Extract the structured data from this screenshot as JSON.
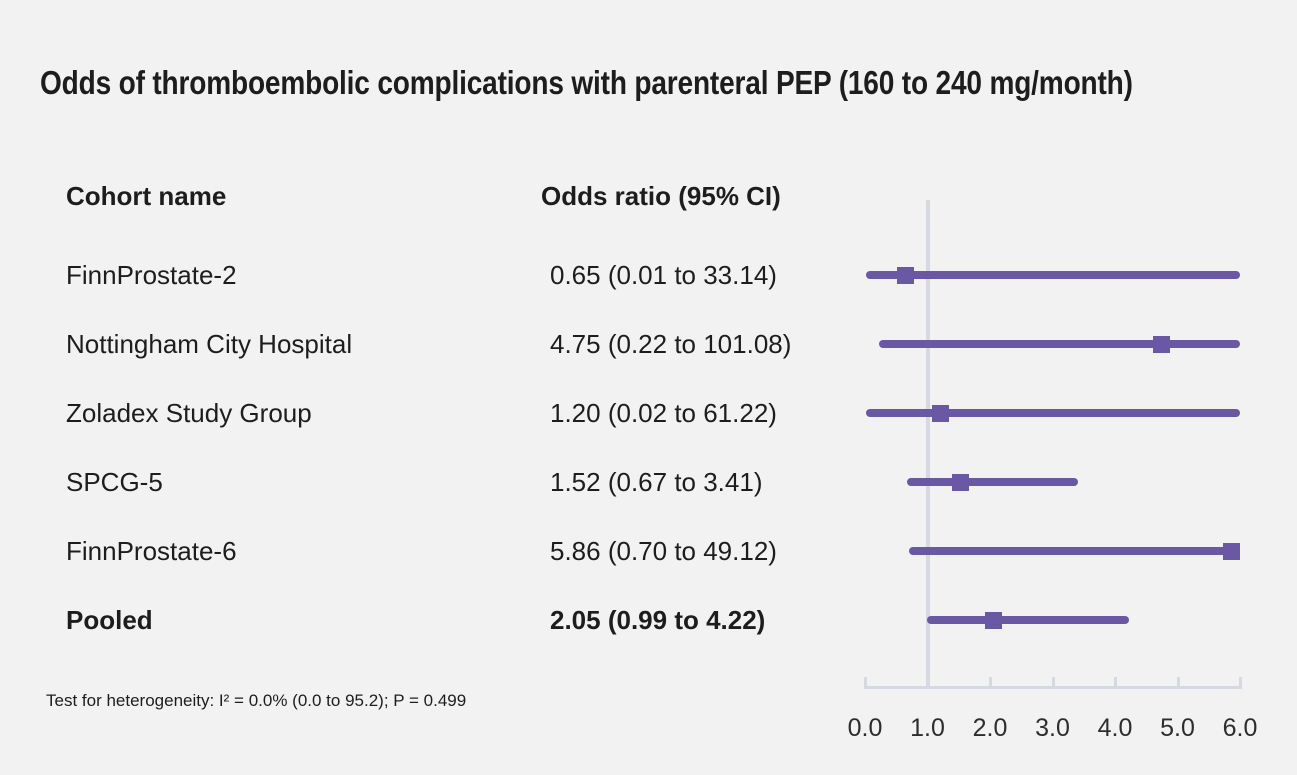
{
  "title": "Odds of thromboembolic complications with parenteral PEP (160 to 240 mg/month)",
  "columns": {
    "cohort": "Cohort name",
    "odds_ratio": "Odds ratio (95% CI)"
  },
  "footnote": "Test for heterogeneity: I² = 0.0% (0.0 to 95.2); P = 0.499",
  "chart_data": {
    "type": "forest",
    "title": "Odds of thromboembolic complications with parenteral PEP (160 to 240 mg/month)",
    "xlabel": "",
    "xlim": [
      0,
      6
    ],
    "x_ticks": [
      0,
      1,
      2,
      3,
      4,
      5,
      6
    ],
    "x_tick_labels": [
      "0.0",
      "1.0",
      "2.0",
      "3.0",
      "4.0",
      "5.0",
      "6.0"
    ],
    "reference_line": 1.0,
    "rows": [
      {
        "label": "FinnProstate-2",
        "or_text": "0.65 (0.01 to 33.14)",
        "or": 0.65,
        "ci_low": 0.01,
        "ci_high": 33.14,
        "pooled": false
      },
      {
        "label": "Nottingham City Hospital",
        "or_text": "4.75 (0.22 to 101.08)",
        "or": 4.75,
        "ci_low": 0.22,
        "ci_high": 101.08,
        "pooled": false
      },
      {
        "label": "Zoladex Study Group",
        "or_text": "1.20 (0.02 to 61.22)",
        "or": 1.2,
        "ci_low": 0.02,
        "ci_high": 61.22,
        "pooled": false
      },
      {
        "label": "SPCG-5",
        "or_text": "1.52 (0.67 to 3.41)",
        "or": 1.52,
        "ci_low": 0.67,
        "ci_high": 3.41,
        "pooled": false
      },
      {
        "label": "FinnProstate-6",
        "or_text": "5.86 (0.70 to 49.12)",
        "or": 5.86,
        "ci_low": 0.7,
        "ci_high": 49.12,
        "pooled": false
      },
      {
        "label": "Pooled",
        "or_text": "2.05 (0.99 to 4.22)",
        "or": 2.05,
        "ci_low": 0.99,
        "ci_high": 4.22,
        "pooled": true
      }
    ],
    "colors": {
      "marker": "#6a58a5",
      "ci_line": "#6a58a5",
      "axis": "#d4d9e2",
      "background": "#f2f2f2",
      "text": "#1d1d1d"
    }
  }
}
